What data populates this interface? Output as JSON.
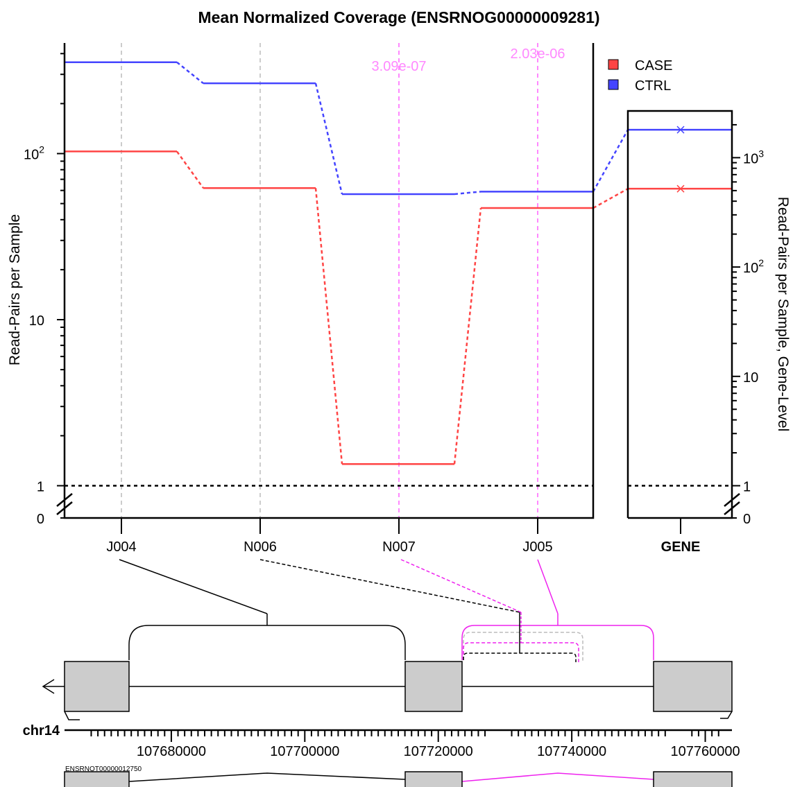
{
  "chart_data": {
    "type": "line",
    "title": "Mean Normalized Coverage (ENSRNOG00000009281)",
    "ylabel": "Read-Pairs per Sample",
    "ylabel_right": "Read-Pairs per Sample, Gene-Level",
    "y_scale": "log (pseudo-log, axis break between 0 and 1)",
    "categories": [
      "J004",
      "N006",
      "N007",
      "J005"
    ],
    "gene_category": "GENE",
    "series": [
      {
        "name": "CASE",
        "color": "#ff4444",
        "values": [
          103,
          62,
          1.35,
          47
        ],
        "gene_value": 520
      },
      {
        "name": "CTRL",
        "color": "#4444ff",
        "values": [
          355,
          265,
          57,
          59
        ],
        "gene_value": 1800
      }
    ],
    "pvalue_annotations": [
      {
        "category": "N007",
        "text": "3.09e-07"
      },
      {
        "category": "J005",
        "text": "2.03e-06"
      }
    ],
    "left_axis": {
      "tick_labels": [
        {
          "base": "0",
          "exp": ""
        },
        {
          "base": "1",
          "exp": ""
        },
        {
          "base": "10",
          "exp": ""
        },
        {
          "base": "10",
          "exp": "2"
        }
      ]
    },
    "right_axis": {
      "tick_labels": [
        {
          "base": "0",
          "exp": ""
        },
        {
          "base": "1",
          "exp": ""
        },
        {
          "base": "10",
          "exp": ""
        },
        {
          "base": "10",
          "exp": "2"
        },
        {
          "base": "10",
          "exp": "3"
        }
      ]
    },
    "legend": {
      "position": "top-right",
      "entries": [
        "CASE",
        "CTRL"
      ]
    },
    "reference_line": 1,
    "genome_track": {
      "chromosome": "chr14",
      "tick_labels": [
        "107680000",
        "107700000",
        "107720000",
        "107740000",
        "107760000"
      ],
      "transcript": "ENSRNOT00000012750",
      "strand": "minus"
    }
  }
}
